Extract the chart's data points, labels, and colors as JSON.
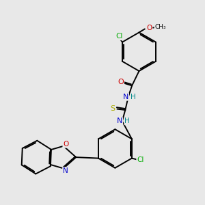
{
  "background_color": "#e8e8e8",
  "atom_colors": {
    "C": "#000000",
    "N": "#0000cc",
    "O": "#cc0000",
    "S": "#aaaa00",
    "Cl_green": "#00aa00",
    "H": "#008888"
  },
  "bond_color": "#000000",
  "bond_width": 1.4
}
